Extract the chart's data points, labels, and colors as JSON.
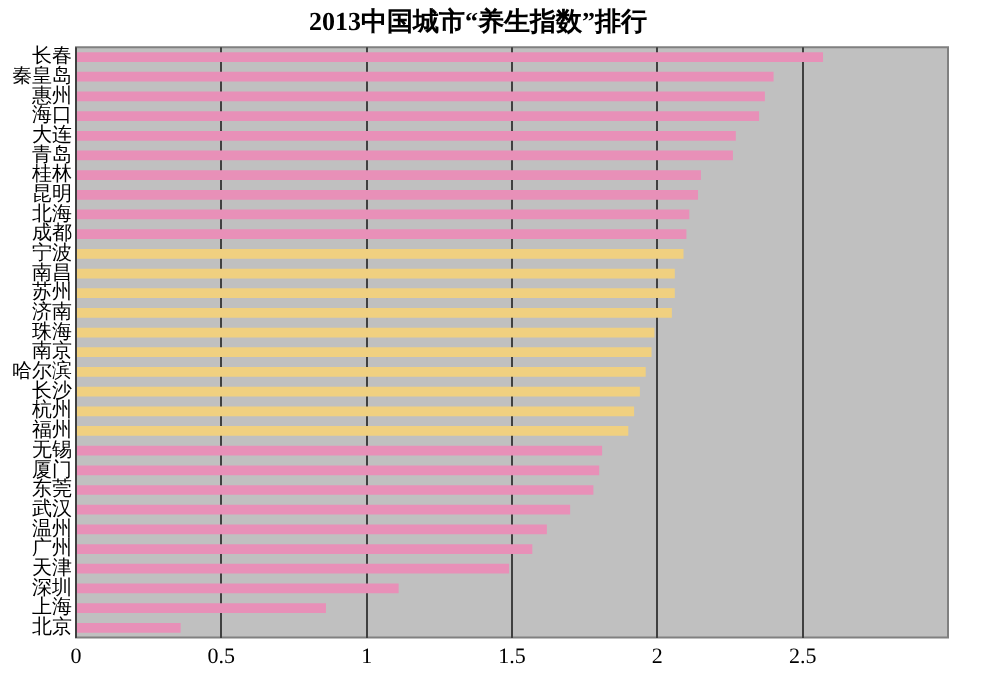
{
  "chart_data": {
    "type": "bar",
    "orientation": "horizontal",
    "title": "2013中国城市“养生指数”排行",
    "categories": [
      "长春",
      "秦皇岛",
      "惠州",
      "海口",
      "大连",
      "青岛",
      "桂林",
      "昆明",
      "北海",
      "成都",
      "宁波",
      "南昌",
      "苏州",
      "济南",
      "珠海",
      "南京",
      "哈尔滨",
      "长沙",
      "杭州",
      "福州",
      "无锡",
      "厦门",
      "东莞",
      "武汉",
      "温州",
      "广州",
      "天津",
      "深圳",
      "上海",
      "北京"
    ],
    "values": [
      2.57,
      2.4,
      2.37,
      2.35,
      2.27,
      2.26,
      2.15,
      2.14,
      2.11,
      2.1,
      2.09,
      2.06,
      2.06,
      2.05,
      1.99,
      1.98,
      1.96,
      1.94,
      1.92,
      1.9,
      1.81,
      1.8,
      1.78,
      1.7,
      1.62,
      1.57,
      1.49,
      1.11,
      0.86,
      0.36
    ],
    "colors": [
      "#e890b8",
      "#e890b8",
      "#e890b8",
      "#e890b8",
      "#e890b8",
      "#e890b8",
      "#e890b8",
      "#e890b8",
      "#e890b8",
      "#e890b8",
      "#f0d080",
      "#f0d080",
      "#f0d080",
      "#f0d080",
      "#f0d080",
      "#f0d080",
      "#f0d080",
      "#f0d080",
      "#f0d080",
      "#f0d080",
      "#e890b8",
      "#e890b8",
      "#e890b8",
      "#e890b8",
      "#e890b8",
      "#e890b8",
      "#e890b8",
      "#e890b8",
      "#e890b8",
      "#e890b8"
    ],
    "xlim": [
      0,
      3
    ],
    "xticks": [
      0,
      0.5,
      1,
      1.5,
      2,
      2.5
    ],
    "grid": "x",
    "legend": false
  }
}
